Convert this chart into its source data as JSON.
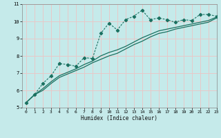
{
  "title": "",
  "xlabel": "Humidex (Indice chaleur)",
  "bg_color": "#c5eaea",
  "grid_color": "#e8c8c8",
  "line_color": "#1a7060",
  "x_data": [
    0,
    1,
    2,
    3,
    4,
    5,
    6,
    7,
    8,
    9,
    10,
    11,
    12,
    13,
    14,
    15,
    16,
    17,
    18,
    19,
    20,
    21,
    22,
    23
  ],
  "line1_y": [
    5.3,
    5.75,
    6.4,
    6.85,
    7.55,
    7.5,
    7.4,
    7.9,
    7.85,
    9.3,
    9.9,
    9.5,
    10.1,
    10.3,
    10.65,
    10.1,
    10.2,
    10.1,
    9.95,
    10.1,
    10.05,
    10.4,
    10.4,
    10.3
  ],
  "line2_y": [
    5.3,
    5.75,
    6.1,
    6.5,
    6.85,
    7.05,
    7.25,
    7.5,
    7.7,
    8.0,
    8.2,
    8.35,
    8.55,
    8.8,
    9.05,
    9.25,
    9.45,
    9.55,
    9.65,
    9.75,
    9.85,
    9.95,
    10.05,
    10.25
  ],
  "line3_y": [
    5.3,
    5.75,
    6.0,
    6.4,
    6.75,
    6.95,
    7.15,
    7.35,
    7.6,
    7.8,
    8.0,
    8.15,
    8.4,
    8.65,
    8.85,
    9.1,
    9.3,
    9.4,
    9.55,
    9.65,
    9.75,
    9.85,
    9.95,
    10.2
  ],
  "ylim": [
    5,
    11
  ],
  "xlim": [
    -0.5,
    23
  ],
  "yticks": [
    5,
    6,
    7,
    8,
    9,
    10,
    11
  ],
  "xticks": [
    0,
    1,
    2,
    3,
    4,
    5,
    6,
    7,
    8,
    9,
    10,
    11,
    12,
    13,
    14,
    15,
    16,
    17,
    18,
    19,
    20,
    21,
    22,
    23
  ]
}
